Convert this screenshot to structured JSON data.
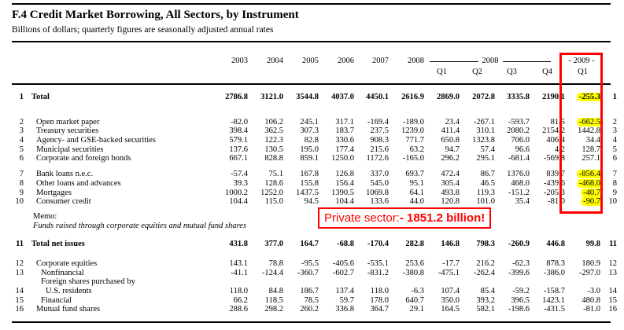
{
  "title": "F.4 Credit Market Borrowing, All Sectors, by Instrument",
  "subtitle": "Billions of dollars; quarterly figures are seasonally adjusted annual rates",
  "columns": [
    "2003",
    "2004",
    "2005",
    "2006",
    "2007",
    "2008",
    "2008-Q1",
    "2008-Q2",
    "2008-Q3",
    "2008-Q4",
    "2009-Q1"
  ],
  "header": {
    "years": [
      "2003",
      "2004",
      "2005",
      "2006",
      "2007",
      "2008"
    ],
    "group_2008_label": "2008",
    "quarters": [
      "Q1",
      "Q2",
      "Q3",
      "Q4"
    ],
    "group_2009_label": "- 2009 -",
    "q1_2009_label": "Q1"
  },
  "annotation": {
    "prefix": "Private sector: ",
    "value": "- 1851.2 billion!"
  },
  "colors": {
    "highlight": "#ffff00",
    "box_red": "#ff0000",
    "annotation_text": "#ff0000"
  },
  "table": {
    "rows": [
      {
        "n": "1",
        "label": "Total",
        "bold": true,
        "indent": 0,
        "mt": 6,
        "values": [
          "2786.8",
          "3121.0",
          "3544.8",
          "4037.0",
          "4450.1",
          "2616.9",
          "2869.0",
          "2072.8",
          "3335.8",
          "2190.1",
          "-255.3"
        ],
        "hl": [
          10
        ]
      },
      {
        "n": "2",
        "label": "Open market paper",
        "indent": 1,
        "mt": 20,
        "values": [
          "-82.0",
          "106.2",
          "245.1",
          "317.1",
          "-169.4",
          "-189.0",
          "23.4",
          "-267.1",
          "-593.7",
          "81.5",
          "-662.5"
        ],
        "hl": [
          10
        ]
      },
      {
        "n": "3",
        "label": "Treasury securities",
        "indent": 1,
        "values": [
          "398.4",
          "362.5",
          "307.3",
          "183.7",
          "237.5",
          "1239.0",
          "411.4",
          "310.1",
          "2080.2",
          "2154.2",
          "1442.8"
        ]
      },
      {
        "n": "4",
        "label": "Agency- and GSE-backed securities",
        "indent": 1,
        "values": [
          "579.1",
          "122.3",
          "82.8",
          "330.6",
          "908.3",
          "771.7",
          "650.8",
          "1323.8",
          "706.0",
          "406.4",
          "34.4"
        ]
      },
      {
        "n": "5",
        "label": "Municipal securities",
        "indent": 1,
        "values": [
          "137.6",
          "130.5",
          "195.0",
          "177.4",
          "215.6",
          "63.2",
          "94.7",
          "57.4",
          "96.6",
          "4.2",
          "128.7"
        ]
      },
      {
        "n": "6",
        "label": "Corporate and foreign bonds",
        "indent": 1,
        "values": [
          "667.1",
          "828.8",
          "859.1",
          "1250.0",
          "1172.6",
          "-165.0",
          "296.2",
          "295.1",
          "-681.4",
          "-569.8",
          "257.1"
        ]
      },
      {
        "n": "7",
        "label": "Bank loans n.e.c.",
        "indent": 1,
        "mt": 8,
        "values": [
          "-57.4",
          "75.1",
          "167.8",
          "126.8",
          "337.0",
          "693.7",
          "472.4",
          "86.7",
          "1376.0",
          "839.7",
          "-856.4"
        ],
        "hl": [
          10
        ]
      },
      {
        "n": "8",
        "label": "Other loans and advances",
        "indent": 1,
        "values": [
          "39.3",
          "128.6",
          "155.8",
          "156.4",
          "545.0",
          "95.1",
          "305.4",
          "46.5",
          "468.0",
          "-439.6",
          "-468.0"
        ],
        "hl": [
          10
        ]
      },
      {
        "n": "9",
        "label": "Mortgages",
        "indent": 1,
        "values": [
          "1000.2",
          "1252.0",
          "1437.5",
          "1390.5",
          "1069.8",
          "64.1",
          "493.8",
          "119.3",
          "-151.2",
          "-205.3",
          "-40.7"
        ],
        "hl": [
          10
        ]
      },
      {
        "n": "10",
        "label": "Consumer credit",
        "indent": 1,
        "values": [
          "104.4",
          "115.0",
          "94.5",
          "104.4",
          "133.6",
          "44.0",
          "120.8",
          "101.0",
          "35.4",
          "-81.0",
          "-90.7"
        ],
        "hl": [
          10
        ]
      },
      {
        "label": "Memo:",
        "x": 42,
        "mt": 7,
        "values": []
      },
      {
        "label": "Funds raised through corporate equities and mutual fund shares",
        "x": 42,
        "italic": true,
        "values": []
      },
      {
        "n": "11",
        "label": "Total net issues",
        "bold": true,
        "indent": 0,
        "mt": 12,
        "values": [
          "431.8",
          "377.0",
          "164.7",
          "-68.8",
          "-170.4",
          "282.8",
          "146.8",
          "798.3",
          "-260.9",
          "446.8",
          "99.8"
        ]
      },
      {
        "n": "12",
        "label": "Corporate equities",
        "indent": 1,
        "mt": 13,
        "values": [
          "143.1",
          "78.8",
          "-95.5",
          "-405.6",
          "-535.1",
          "253.6",
          "-17.7",
          "216.2",
          "-62.3",
          "878.3",
          "180.9"
        ]
      },
      {
        "n": "13",
        "label": "Nonfinancial",
        "indent": 2,
        "values": [
          "-41.1",
          "-124.4",
          "-360.7",
          "-602.7",
          "-831.2",
          "-380.8",
          "-475.1",
          "-262.4",
          "-399.6",
          "-386.0",
          "-297.0"
        ]
      },
      {
        "label": "Foreign shares purchased by",
        "indent": 2,
        "values": []
      },
      {
        "n": "14",
        "label": "U.S. residents",
        "indent": 3,
        "values": [
          "118.0",
          "84.8",
          "186.7",
          "137.4",
          "118.0",
          "-6.3",
          "107.4",
          "85.4",
          "-59.2",
          "-158.7",
          "-3.0"
        ]
      },
      {
        "n": "15",
        "label": "Financial",
        "indent": 2,
        "values": [
          "66.2",
          "118.5",
          "78.5",
          "59.7",
          "178.0",
          "640.7",
          "350.0",
          "393.2",
          "396.5",
          "1423.1",
          "480.8"
        ]
      },
      {
        "n": "16",
        "label": "Mutual fund shares",
        "indent": 1,
        "values": [
          "288.6",
          "298.2",
          "260.2",
          "336.8",
          "364.7",
          "29.1",
          "164.5",
          "582.1",
          "-198.6",
          "-431.5",
          "-81.0"
        ]
      }
    ]
  }
}
